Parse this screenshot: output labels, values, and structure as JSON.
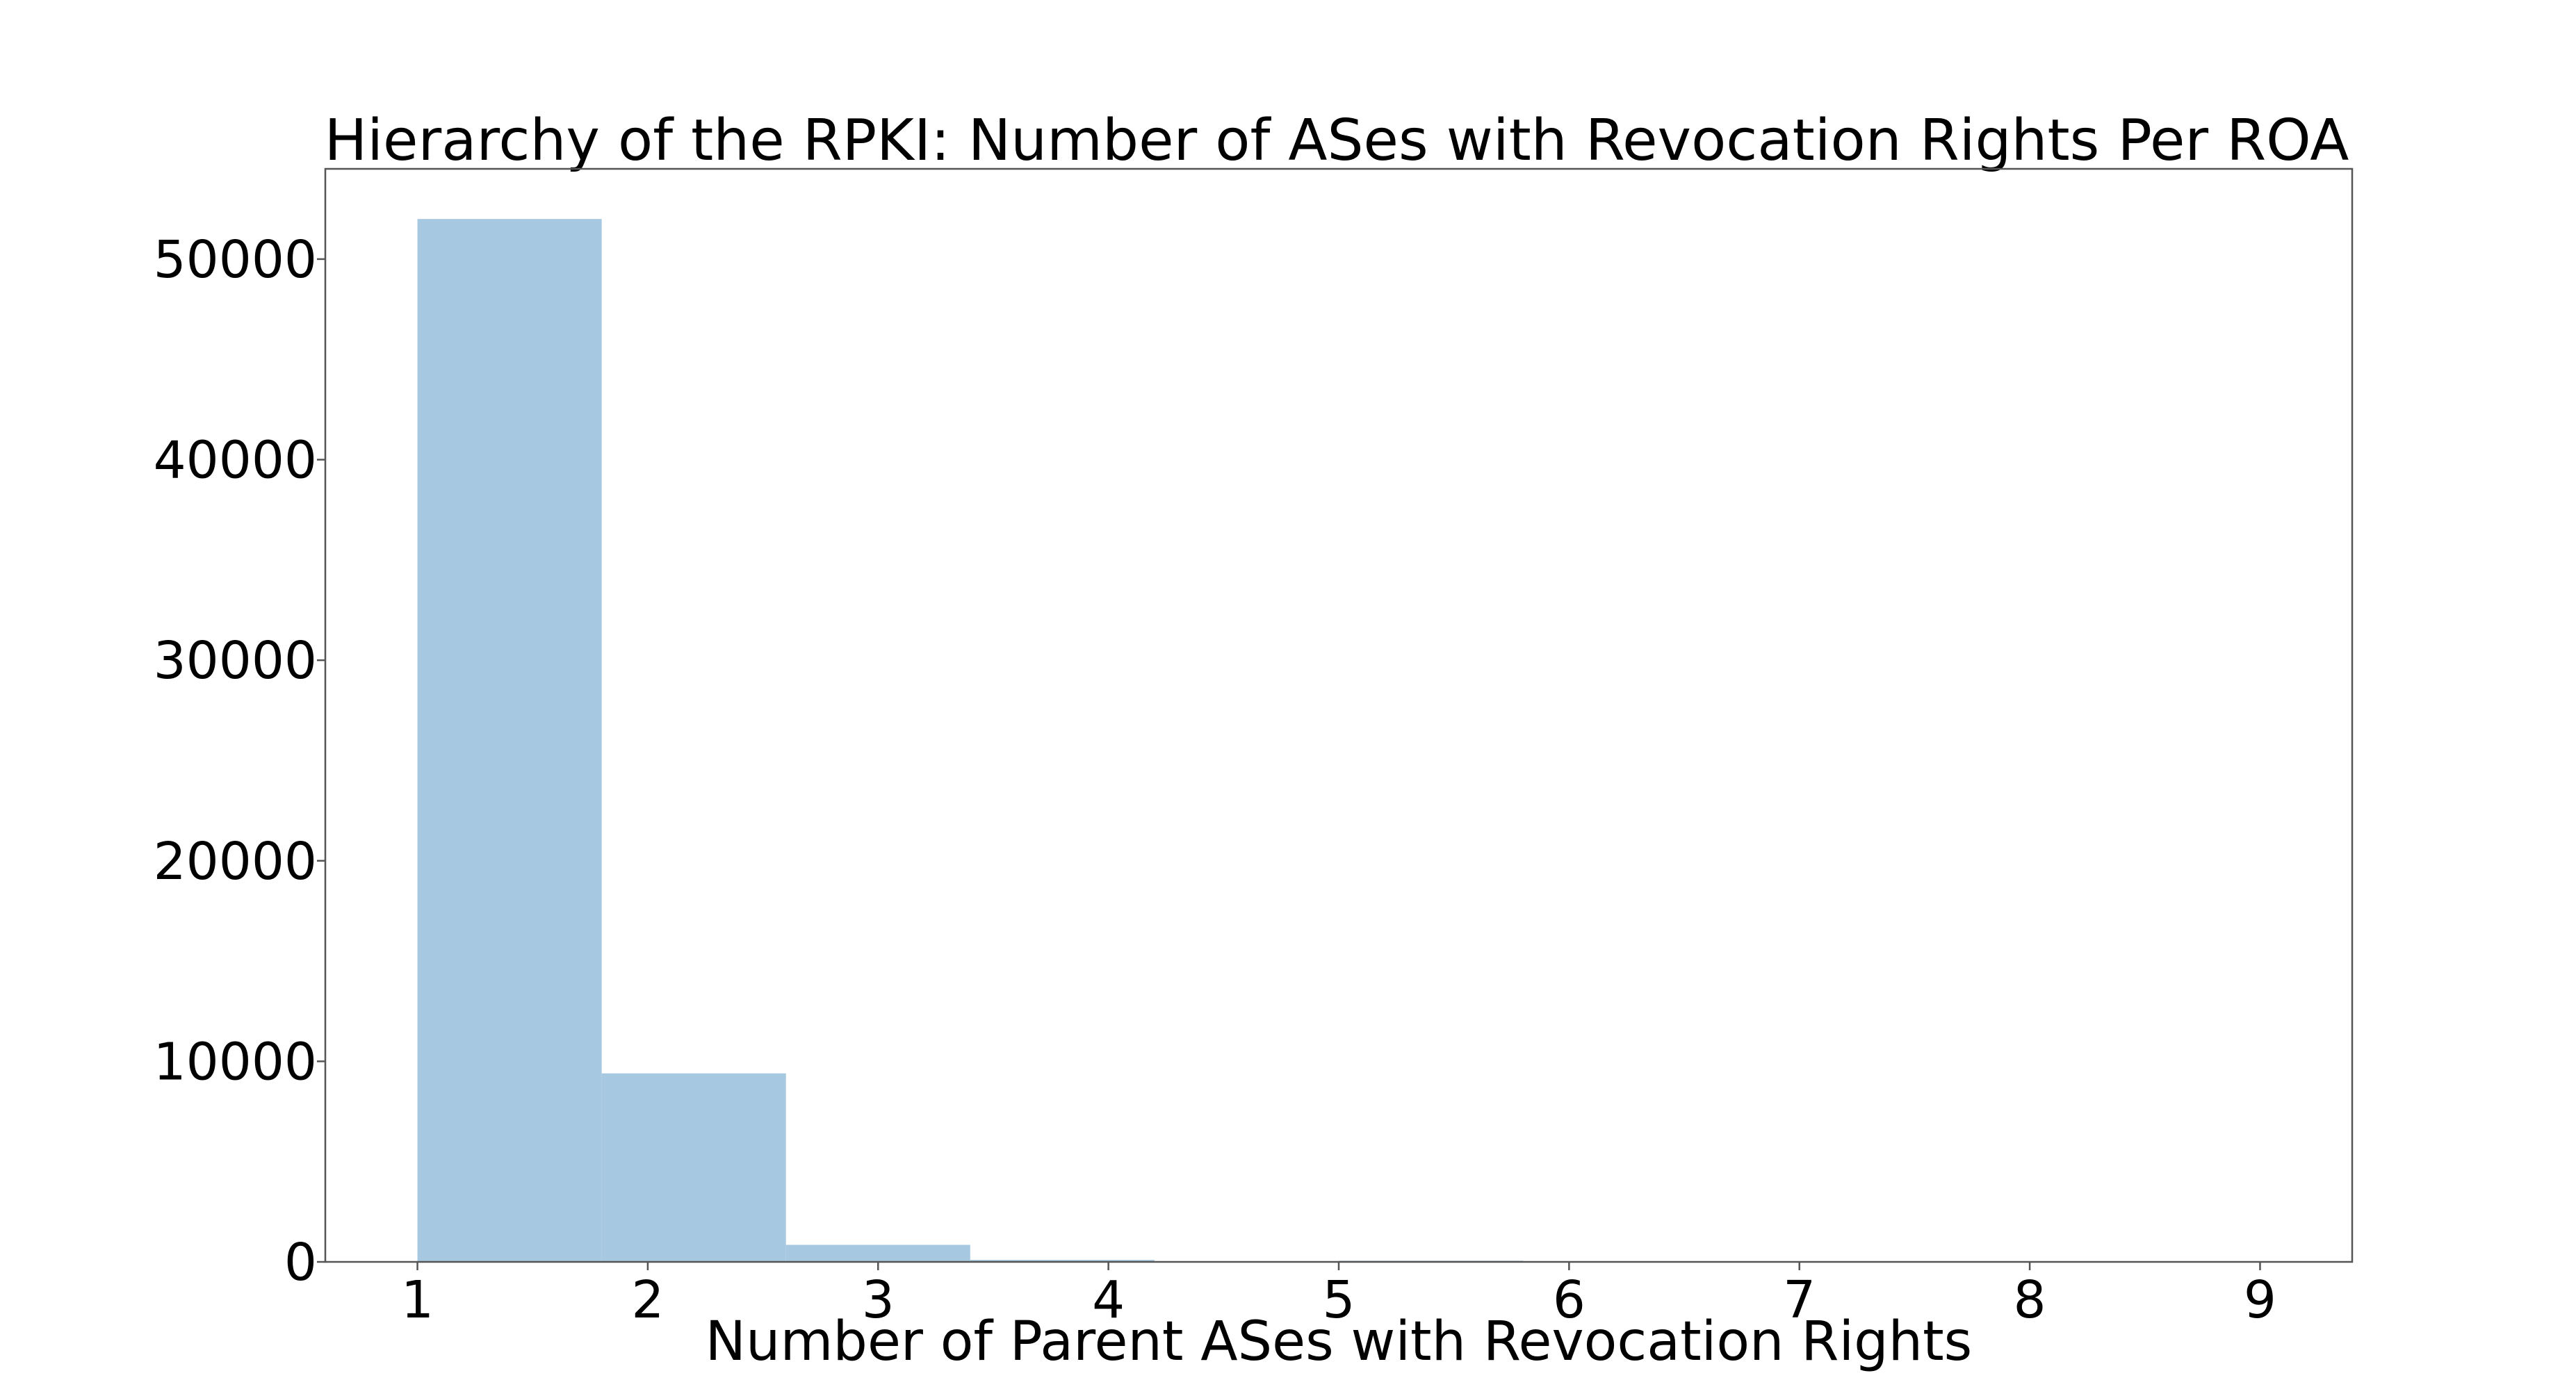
{
  "chart_data": {
    "type": "bar",
    "title": "Hierarchy of the RPKI: Number of ASes with Revocation Rights Per ROA",
    "xlabel": "Number of Parent ASes with Revocation Rights",
    "ylabel": "",
    "xlim": [
      0.6,
      9.4
    ],
    "ylim": [
      0,
      54500
    ],
    "xticks": [
      1,
      2,
      3,
      4,
      5,
      6,
      7,
      8,
      9
    ],
    "yticks": [
      0,
      10000,
      20000,
      30000,
      40000,
      50000
    ],
    "bins": [
      {
        "start": 1.0,
        "end": 1.8,
        "value": 52000
      },
      {
        "start": 1.8,
        "end": 2.6,
        "value": 9400
      },
      {
        "start": 2.6,
        "end": 3.4,
        "value": 850
      },
      {
        "start": 3.4,
        "end": 4.2,
        "value": 100
      },
      {
        "start": 4.2,
        "end": 5.0,
        "value": 0
      },
      {
        "start": 5.0,
        "end": 5.8,
        "value": 60
      },
      {
        "start": 5.8,
        "end": 6.6,
        "value": 0
      },
      {
        "start": 6.6,
        "end": 7.4,
        "value": 0
      },
      {
        "start": 7.4,
        "end": 8.2,
        "value": 0
      },
      {
        "start": 8.2,
        "end": 9.0,
        "value": 5
      }
    ],
    "bar_color": "#a6c8e0",
    "grid": false,
    "legend": "none"
  }
}
